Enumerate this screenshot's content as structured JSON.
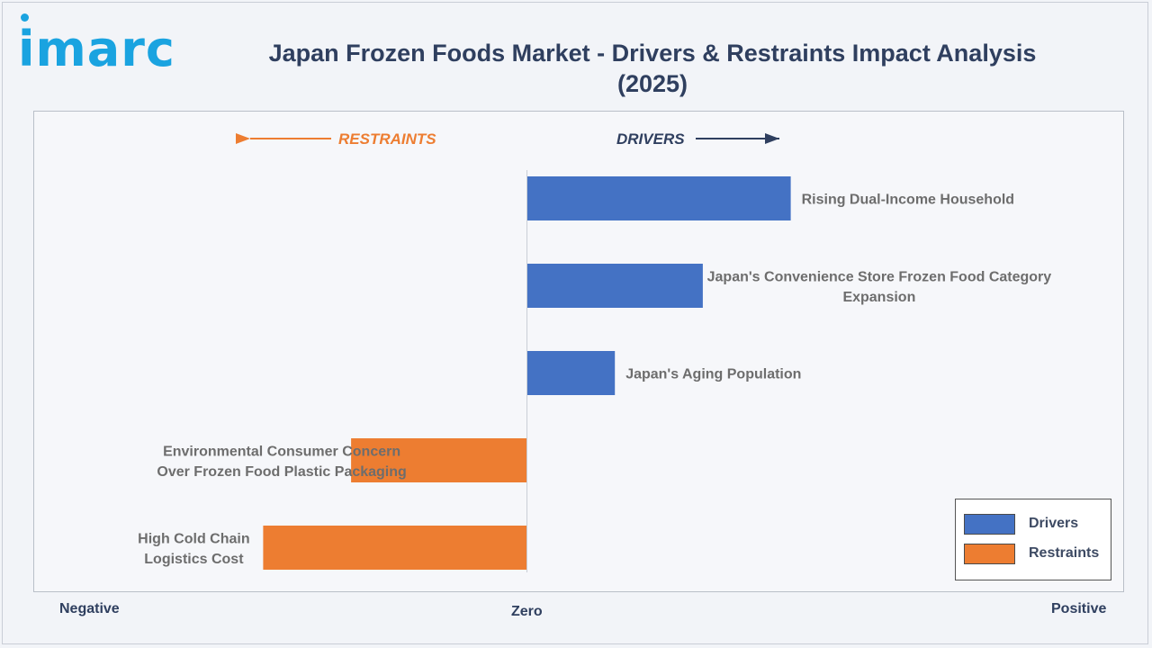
{
  "header": {
    "logo_text": "imarc",
    "title": "Japan Frozen Foods Market - Drivers & Restraints Impact Analysis (2025)"
  },
  "directions": {
    "restraints": "RESTRAINTS",
    "drivers": "DRIVERS"
  },
  "axis": {
    "negative": "Negative",
    "zero": "Zero",
    "positive": "Positive"
  },
  "legend": {
    "placement": "bottom-right",
    "items": [
      {
        "label": "Drivers",
        "color": "#4472c4"
      },
      {
        "label": "Restraints",
        "color": "#ed7d31"
      }
    ]
  },
  "colors": {
    "drivers": "#4472c4",
    "restraints": "#ed7d31",
    "title": "#2f3f5f",
    "brand": "#1aa3e0"
  },
  "chart_data": {
    "type": "bar",
    "orientation": "horizontal",
    "title": "Japan Frozen Foods Market - Drivers & Restraints Impact Analysis (2025)",
    "xlim": [
      -3,
      3
    ],
    "categories": [
      "Rising Dual-Income Household",
      "Japan's Convenience Store Frozen Food Category Expansion",
      "Japan's Aging Population",
      "Environmental Consumer Concern Over Frozen Food Plastic Packaging",
      "High Cold Chain Logistics Cost"
    ],
    "series": [
      {
        "name": "Drivers",
        "values": [
          3,
          2,
          1,
          0,
          0
        ]
      },
      {
        "name": "Restraints",
        "values": [
          0,
          0,
          0,
          -2,
          -3
        ]
      }
    ],
    "grid": false
  }
}
